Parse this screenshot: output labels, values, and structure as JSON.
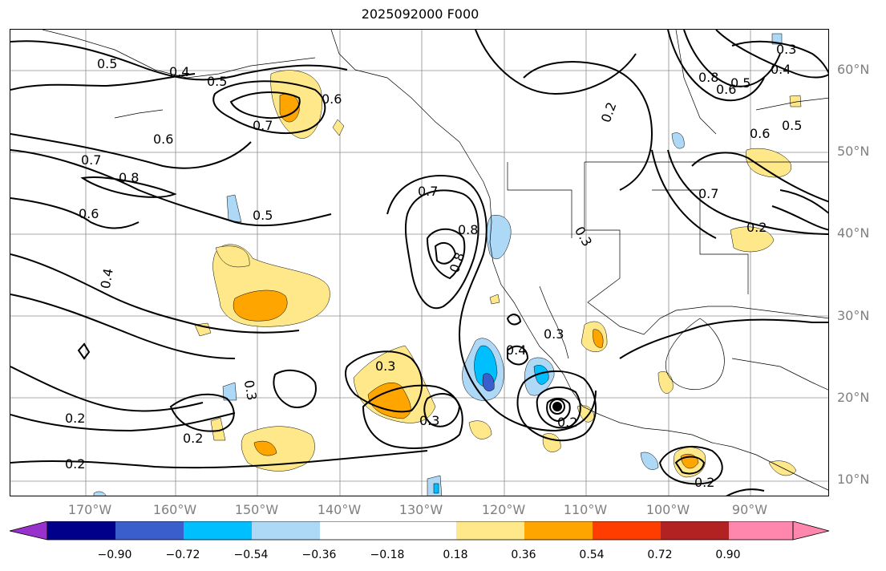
{
  "title": "2025092000 F000",
  "lat_labels": [
    "60°N",
    "50°N",
    "40°N",
    "30°N",
    "20°N",
    "10°N"
  ],
  "lon_labels": [
    "170°W",
    "160°W",
    "150°W",
    "140°W",
    "130°W",
    "120°W",
    "110°W",
    "100°W",
    "90°W"
  ],
  "contour_labels": [
    "0.5",
    "0.4",
    "0.5",
    "0.6",
    "0.7",
    "0.6",
    "0.7",
    "0.8",
    "0.6",
    "0.5",
    "0.4",
    "0.7",
    "0.8",
    "0.3",
    "0.3",
    "0.3",
    "0.4",
    "0.3",
    "0.2",
    "0.2",
    "0.2",
    "0.2",
    "0.8",
    "0.6",
    "0.5",
    "0.4",
    "0.3",
    "0.7",
    "0.6",
    "0.5",
    "0.2",
    "0.3",
    "0.2",
    "0.8",
    "0.2"
  ],
  "colorbar": {
    "ticks": [
      "−0.90",
      "−0.72",
      "−0.54",
      "−0.36",
      "−0.18",
      "0.18",
      "0.36",
      "0.54",
      "0.72",
      "0.90"
    ],
    "colors": [
      "#9932cc",
      "#00008b",
      "#3a5fcd",
      "#00bfff",
      "#add8f6",
      "#ffffff",
      "#ffe88a",
      "#ffa500",
      "#ff3d00",
      "#b22222",
      "#ff87ad"
    ]
  },
  "fill_colors": {
    "light_yellow": "#ffe88a",
    "orange": "#ffa500",
    "red_orange": "#ff3d00",
    "light_blue": "#add8f6",
    "blue": "#00bfff",
    "dark_blue": "#3a5fcd"
  }
}
